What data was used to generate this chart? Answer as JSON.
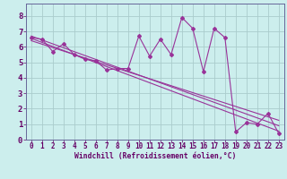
{
  "xlabel": "Windchill (Refroidissement éolien,°C)",
  "background_color": "#cceeed",
  "line_color": "#993399",
  "xlim": [
    -0.5,
    23.5
  ],
  "ylim": [
    0,
    8.8
  ],
  "xticks": [
    0,
    1,
    2,
    3,
    4,
    5,
    6,
    7,
    8,
    9,
    10,
    11,
    12,
    13,
    14,
    15,
    16,
    17,
    18,
    19,
    20,
    21,
    22,
    23
  ],
  "yticks": [
    0,
    1,
    2,
    3,
    4,
    5,
    6,
    7,
    8
  ],
  "scatter_x": [
    0,
    1,
    2,
    3,
    4,
    5,
    6,
    7,
    8,
    9,
    10,
    11,
    12,
    13,
    14,
    15,
    16,
    17,
    18,
    19,
    20,
    21,
    22,
    23
  ],
  "scatter_y": [
    6.6,
    6.5,
    5.7,
    6.2,
    5.5,
    5.2,
    5.1,
    4.5,
    4.6,
    4.6,
    6.7,
    5.4,
    6.5,
    5.5,
    7.9,
    7.2,
    4.4,
    7.2,
    6.6,
    0.5,
    1.1,
    1.0,
    1.7,
    0.4
  ],
  "line1_x": [
    0,
    23
  ],
  "line1_y": [
    6.7,
    0.9
  ],
  "line2_x": [
    0,
    23
  ],
  "line2_y": [
    6.55,
    0.55
  ],
  "line3_x": [
    0,
    23
  ],
  "line3_y": [
    6.4,
    1.25
  ],
  "grid_color": "#aacccc",
  "spine_color": "#666699",
  "tick_color": "#660066",
  "xlabel_fontsize": 5.8,
  "ytick_fontsize": 6.5,
  "xtick_fontsize": 5.5
}
